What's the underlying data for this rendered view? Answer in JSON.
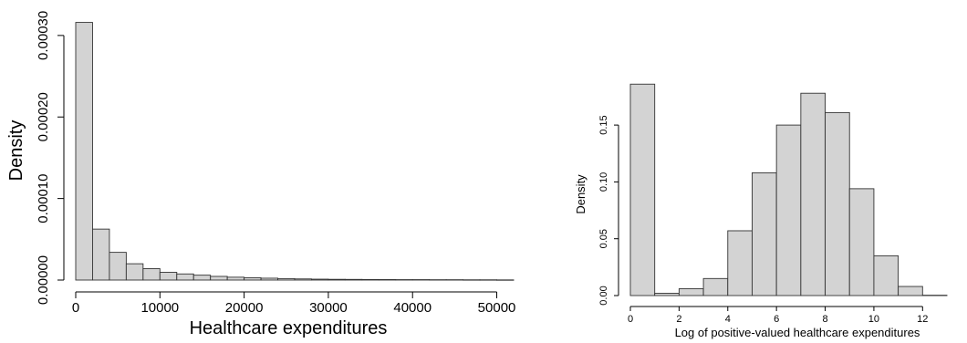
{
  "chart_data": [
    {
      "type": "bar",
      "subtype": "histogram",
      "xlabel": "Healthcare expenditures",
      "ylabel": "Density",
      "x_ticks": [
        "0",
        "10000",
        "20000",
        "30000",
        "40000",
        "50000"
      ],
      "y_ticks": [
        "0.00000",
        "0.00010",
        "0.00020",
        "0.00030"
      ],
      "xlim": [
        0,
        52000
      ],
      "ylim": [
        0,
        0.00032
      ],
      "bins": [
        {
          "x0": 0,
          "x1": 2000,
          "density": 0.000316
        },
        {
          "x0": 2000,
          "x1": 4000,
          "density": 6.25e-05
        },
        {
          "x0": 4000,
          "x1": 6000,
          "density": 3.4e-05
        },
        {
          "x0": 6000,
          "x1": 8000,
          "density": 2e-05
        },
        {
          "x0": 8000,
          "x1": 10000,
          "density": 1.4e-05
        },
        {
          "x0": 10000,
          "x1": 12000,
          "density": 9.5e-06
        },
        {
          "x0": 12000,
          "x1": 14000,
          "density": 7.5e-06
        },
        {
          "x0": 14000,
          "x1": 16000,
          "density": 6e-06
        },
        {
          "x0": 16000,
          "x1": 18000,
          "density": 4.5e-06
        },
        {
          "x0": 18000,
          "x1": 20000,
          "density": 3.5e-06
        },
        {
          "x0": 20000,
          "x1": 22000,
          "density": 2.8e-06
        },
        {
          "x0": 22000,
          "x1": 24000,
          "density": 2.3e-06
        },
        {
          "x0": 24000,
          "x1": 26000,
          "density": 1.8e-06
        },
        {
          "x0": 26000,
          "x1": 28000,
          "density": 1.4e-06
        },
        {
          "x0": 28000,
          "x1": 30000,
          "density": 1.1e-06
        },
        {
          "x0": 30000,
          "x1": 32000,
          "density": 9e-07
        },
        {
          "x0": 32000,
          "x1": 34000,
          "density": 8e-07
        },
        {
          "x0": 34000,
          "x1": 36000,
          "density": 7e-07
        },
        {
          "x0": 36000,
          "x1": 38000,
          "density": 6e-07
        },
        {
          "x0": 38000,
          "x1": 40000,
          "density": 5e-07
        },
        {
          "x0": 40000,
          "x1": 42000,
          "density": 5e-07
        },
        {
          "x0": 42000,
          "x1": 44000,
          "density": 4e-07
        },
        {
          "x0": 44000,
          "x1": 46000,
          "density": 4e-07
        },
        {
          "x0": 46000,
          "x1": 48000,
          "density": 3e-07
        },
        {
          "x0": 48000,
          "x1": 50000,
          "density": 3e-07
        },
        {
          "x0": 50000,
          "x1": 52000,
          "density": 2e-07
        }
      ],
      "grid": false
    },
    {
      "type": "bar",
      "subtype": "histogram",
      "xlabel": "Log of positive-valued healthcare expenditures",
      "ylabel": "Density",
      "x_ticks": [
        "0",
        "2",
        "4",
        "6",
        "8",
        "10",
        "12"
      ],
      "y_ticks": [
        "0.00",
        "0.05",
        "0.10",
        "0.15"
      ],
      "xlim": [
        0,
        13
      ],
      "ylim": [
        0,
        0.187
      ],
      "bins": [
        {
          "x0": 0,
          "x1": 1,
          "density": 0.186
        },
        {
          "x0": 1,
          "x1": 2,
          "density": 0.002
        },
        {
          "x0": 2,
          "x1": 3,
          "density": 0.006
        },
        {
          "x0": 3,
          "x1": 4,
          "density": 0.015
        },
        {
          "x0": 4,
          "x1": 5,
          "density": 0.057
        },
        {
          "x0": 5,
          "x1": 6,
          "density": 0.108
        },
        {
          "x0": 6,
          "x1": 7,
          "density": 0.15
        },
        {
          "x0": 7,
          "x1": 8,
          "density": 0.178
        },
        {
          "x0": 8,
          "x1": 9,
          "density": 0.161
        },
        {
          "x0": 9,
          "x1": 10,
          "density": 0.094
        },
        {
          "x0": 10,
          "x1": 11,
          "density": 0.035
        },
        {
          "x0": 11,
          "x1": 12,
          "density": 0.008
        },
        {
          "x0": 12,
          "x1": 13,
          "density": 0.0003
        }
      ],
      "grid": false
    }
  ],
  "colors": {
    "bar_fill": "#d3d3d3",
    "bar_stroke": "#333333"
  }
}
